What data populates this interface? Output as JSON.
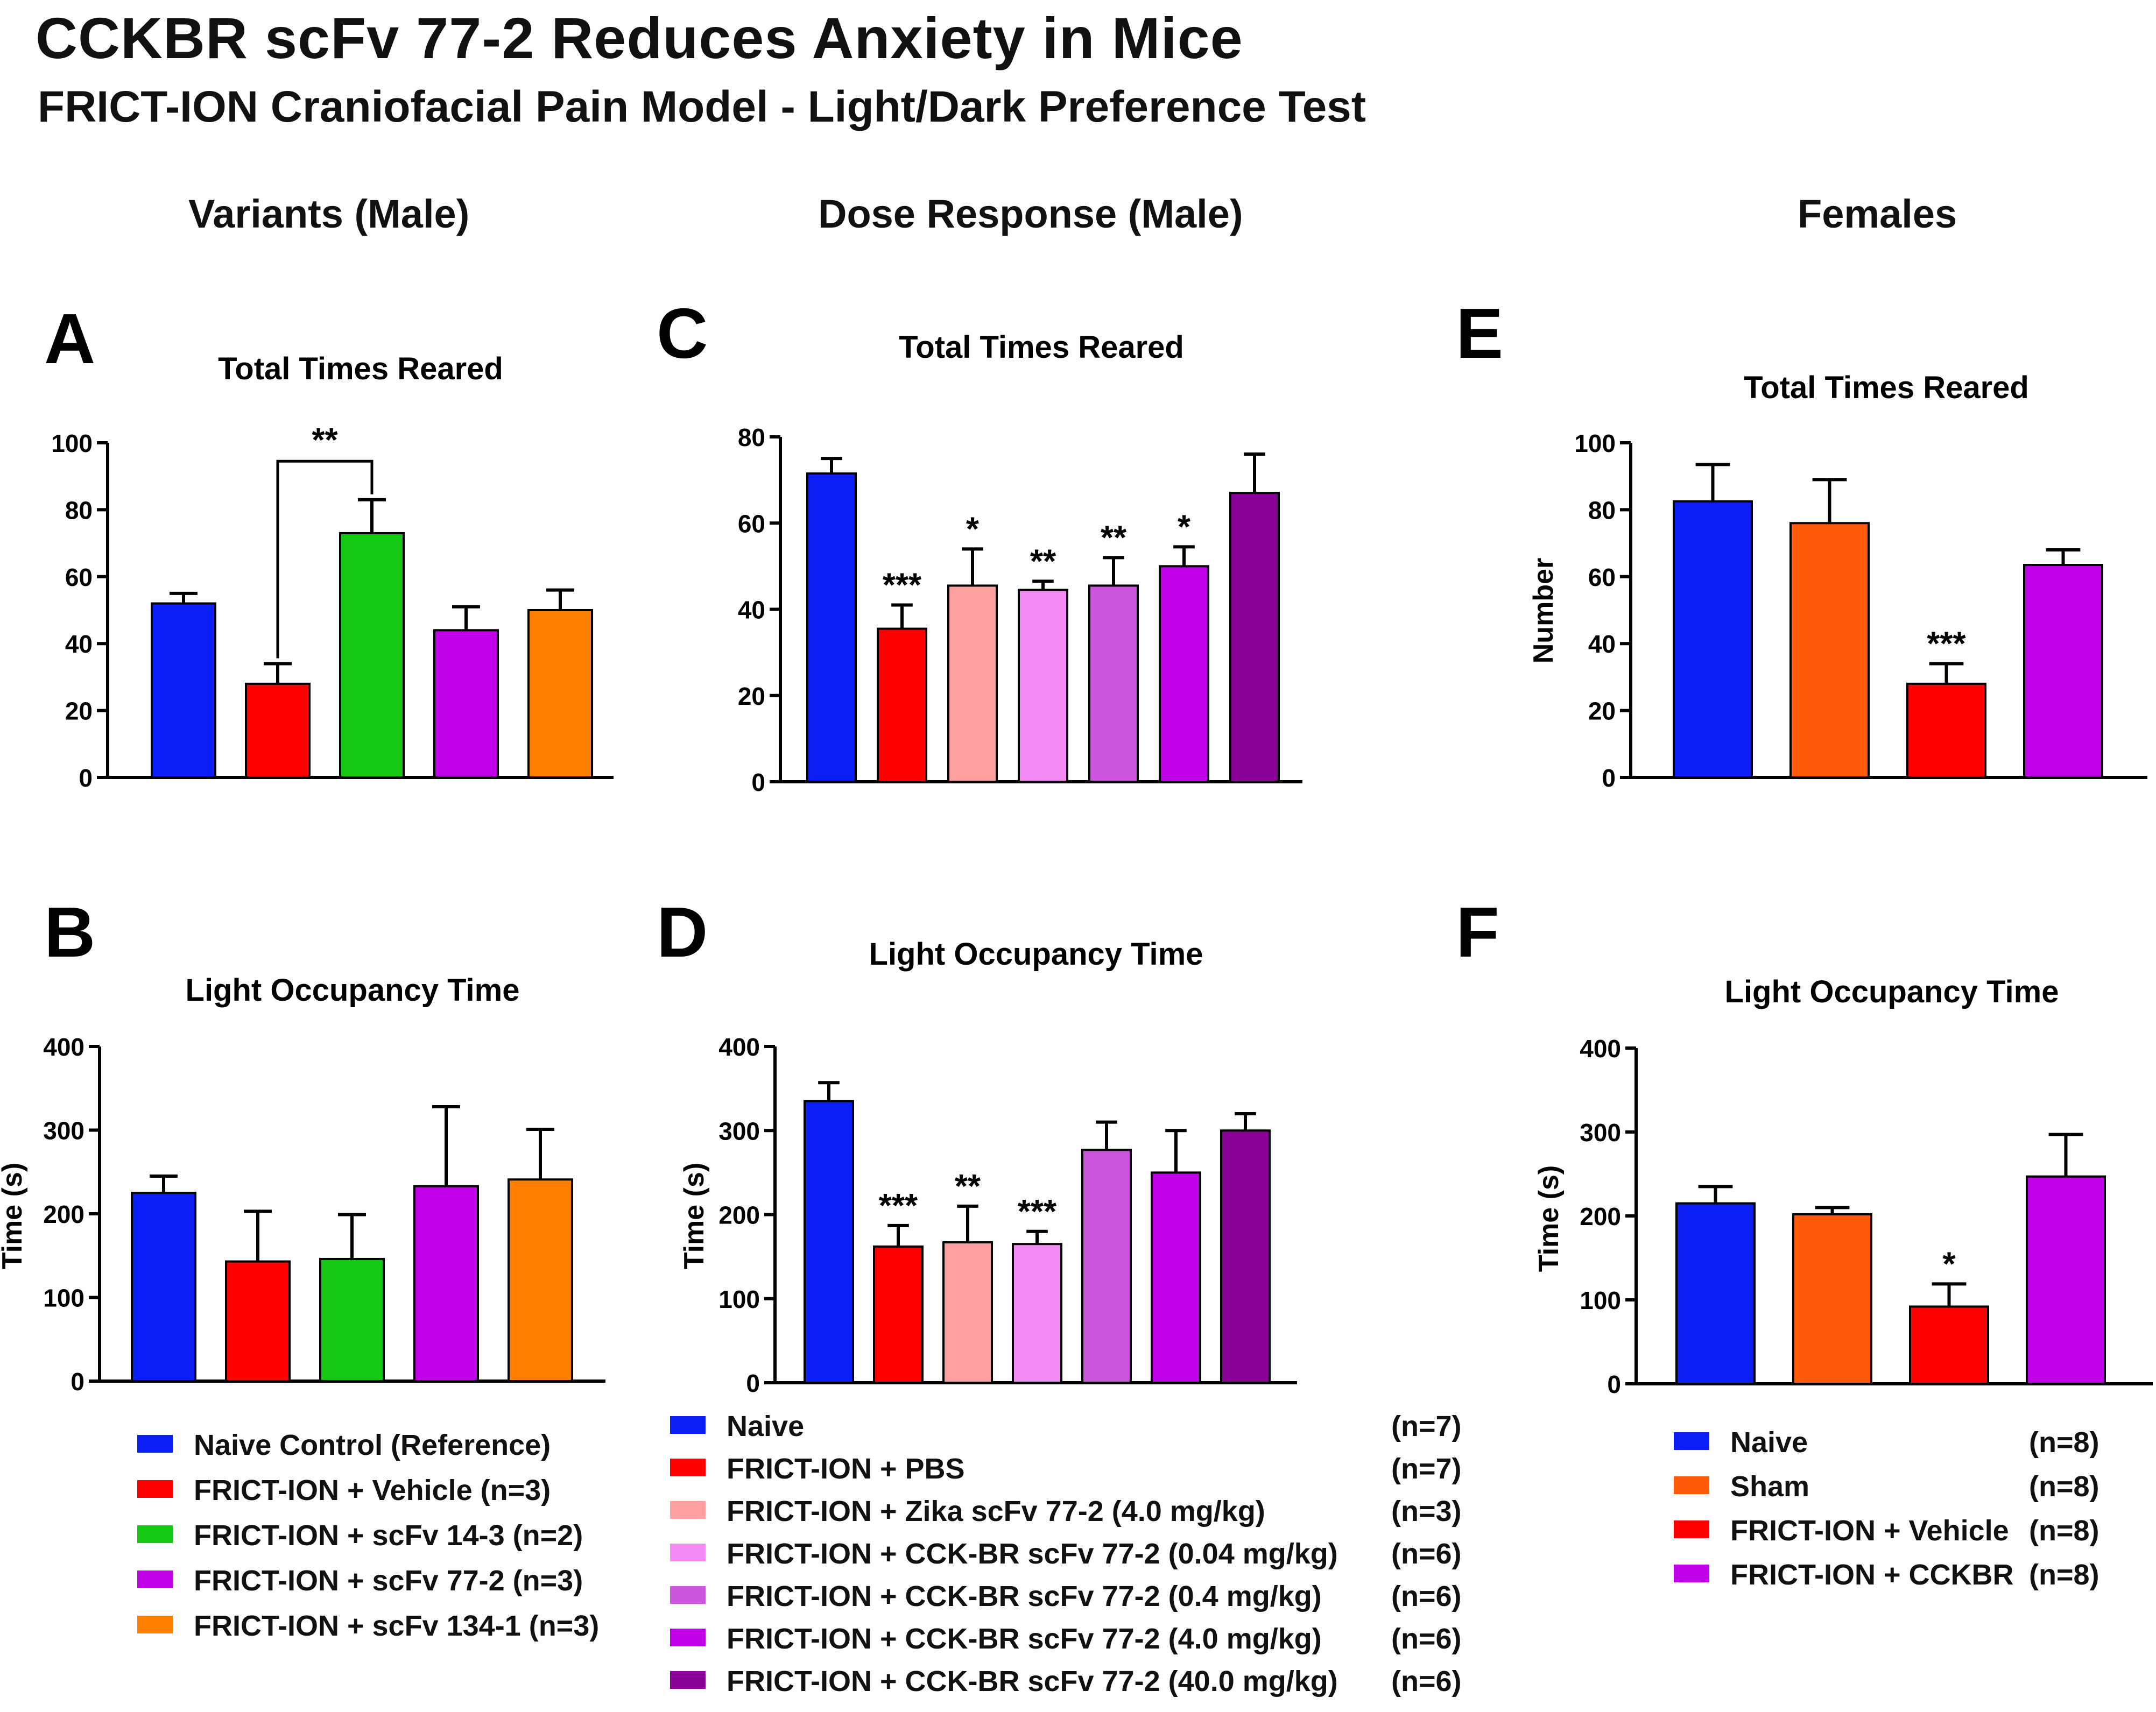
{
  "title": "CCKBR scFv 77-2 Reduces Anxiety in Mice",
  "subtitle": "FRICT-ION Craniofacial Pain Model - Light/Dark Preference Test",
  "column_headers": [
    "Variants (Male)",
    "Dose Response (Male)",
    "Females"
  ],
  "colors": {
    "blue": "#0a1ef5",
    "red": "#ff0000",
    "green": "#14c814",
    "purple": "#c000e6",
    "orange": "#ff8000",
    "sham_orange": "#ff5a0a",
    "salmon": "#ffa0a0",
    "pink": "#f58cf5",
    "orchid": "#cc55dd",
    "darkpurple": "#880096"
  },
  "chart_data": [
    {
      "id": "A",
      "panel_letter": "A",
      "type": "bar",
      "title": "Total Times Reared",
      "xlabel": "",
      "ylabel": "",
      "ylim": [
        0,
        100
      ],
      "yticks": [
        "0",
        "20",
        "40",
        "60",
        "80",
        "100"
      ],
      "values": [
        52,
        28,
        73,
        44,
        50
      ],
      "errors": [
        3,
        6,
        10,
        7,
        6
      ],
      "colors": [
        "#0a1ef5",
        "#ff0000",
        "#14c814",
        "#c000e6",
        "#ff8000"
      ],
      "annotations": [
        "",
        "",
        "",
        "",
        ""
      ],
      "bracket": {
        "from": 1,
        "to": 2,
        "label": "**"
      }
    },
    {
      "id": "B",
      "panel_letter": "B",
      "type": "bar",
      "title": "Light Occupancy Time",
      "xlabel": "",
      "ylabel": "Time (s)",
      "ylim": [
        0,
        400
      ],
      "yticks": [
        "0",
        "100",
        "200",
        "300",
        "400"
      ],
      "values": [
        225,
        143,
        146,
        233,
        241
      ],
      "errors": [
        20,
        60,
        53,
        95,
        60
      ],
      "colors": [
        "#0a1ef5",
        "#ff0000",
        "#14c814",
        "#c000e6",
        "#ff8000"
      ],
      "annotations": [
        "",
        "",
        "",
        "",
        ""
      ]
    },
    {
      "id": "C",
      "panel_letter": "C",
      "type": "bar",
      "title": "Total Times Reared",
      "xlabel": "",
      "ylabel": "",
      "ylim": [
        0,
        80
      ],
      "yticks": [
        "0",
        "20",
        "40",
        "60",
        "80"
      ],
      "values": [
        71.5,
        35.5,
        45.5,
        44.5,
        45.5,
        50,
        67
      ],
      "errors": [
        3.5,
        5.5,
        8.5,
        2,
        6.5,
        4.5,
        9
      ],
      "colors": [
        "#0a1ef5",
        "#ff0000",
        "#ffa0a0",
        "#f58cf5",
        "#cc55dd",
        "#c000e6",
        "#880096"
      ],
      "annotations": [
        "",
        "***",
        "*",
        "**",
        "**",
        "*",
        ""
      ]
    },
    {
      "id": "D",
      "panel_letter": "D",
      "type": "bar",
      "title": "Light Occupancy Time",
      "xlabel": "",
      "ylabel": "Time (s)",
      "ylim": [
        0,
        400
      ],
      "yticks": [
        "0",
        "100",
        "200",
        "300",
        "400"
      ],
      "values": [
        335,
        162,
        167,
        165,
        277,
        250,
        300
      ],
      "errors": [
        22,
        25,
        43,
        15,
        33,
        50,
        20
      ],
      "colors": [
        "#0a1ef5",
        "#ff0000",
        "#ffa0a0",
        "#f58cf5",
        "#cc55dd",
        "#c000e6",
        "#880096"
      ],
      "annotations": [
        "",
        "***",
        "**",
        "***",
        "",
        "",
        ""
      ]
    },
    {
      "id": "E",
      "panel_letter": "E",
      "type": "bar",
      "title": "Total Times Reared",
      "xlabel": "",
      "ylabel": "Number",
      "ylim": [
        0,
        100
      ],
      "yticks": [
        "0",
        "20",
        "40",
        "60",
        "80",
        "100"
      ],
      "values": [
        82.5,
        76,
        28,
        63.5
      ],
      "errors": [
        11,
        13,
        6,
        4.5
      ],
      "colors": [
        "#0a1ef5",
        "#ff5a0a",
        "#ff0000",
        "#c000e6"
      ],
      "annotations": [
        "",
        "",
        "***",
        ""
      ]
    },
    {
      "id": "F",
      "panel_letter": "F",
      "type": "bar",
      "title": "Light Occupancy Time",
      "xlabel": "",
      "ylabel": "Time (s)",
      "ylim": [
        0,
        400
      ],
      "yticks": [
        "0",
        "100",
        "200",
        "300",
        "400"
      ],
      "values": [
        215,
        202,
        92,
        247
      ],
      "errors": [
        20,
        8,
        27,
        50
      ],
      "colors": [
        "#0a1ef5",
        "#ff5a0a",
        "#ff0000",
        "#c000e6"
      ],
      "annotations": [
        "",
        "",
        "*",
        ""
      ]
    }
  ],
  "legends": {
    "variants": [
      {
        "label": "Naive Control (Reference)",
        "n": "",
        "color": "#0a1ef5"
      },
      {
        "label": "FRICT-ION + Vehicle (n=3)",
        "n": "",
        "color": "#ff0000"
      },
      {
        "label": "FRICT-ION + scFv 14-3 (n=2)",
        "n": "",
        "color": "#14c814"
      },
      {
        "label": "FRICT-ION + scFv 77-2 (n=3)",
        "n": "",
        "color": "#c000e6"
      },
      {
        "label": "FRICT-ION + scFv 134-1 (n=3)",
        "n": "",
        "color": "#ff8000"
      }
    ],
    "dose": [
      {
        "label": "Naive",
        "n": "(n=7)",
        "color": "#0a1ef5"
      },
      {
        "label": "FRICT-ION + PBS",
        "n": "(n=7)",
        "color": "#ff0000"
      },
      {
        "label": "FRICT-ION + Zika scFv 77-2 (4.0 mg/kg)",
        "n": "(n=3)",
        "color": "#ffa0a0"
      },
      {
        "label": "FRICT-ION + CCK-BR scFv 77-2 (0.04 mg/kg)",
        "n": "(n=6)",
        "color": "#f58cf5"
      },
      {
        "label": "FRICT-ION + CCK-BR scFv 77-2 (0.4 mg/kg)",
        "n": "(n=6)",
        "color": "#cc55dd"
      },
      {
        "label": "FRICT-ION + CCK-BR scFv 77-2 (4.0 mg/kg)",
        "n": "(n=6)",
        "color": "#c000e6"
      },
      {
        "label": "FRICT-ION + CCK-BR scFv 77-2 (40.0 mg/kg)",
        "n": "(n=6)",
        "color": "#880096"
      }
    ],
    "females": [
      {
        "label": "Naive",
        "n": "(n=8)",
        "color": "#0a1ef5"
      },
      {
        "label": "Sham",
        "n": "(n=8)",
        "color": "#ff5a0a"
      },
      {
        "label": "FRICT-ION + Vehicle",
        "n": "(n=8)",
        "color": "#ff0000"
      },
      {
        "label": "FRICT-ION + CCKBR",
        "n": "(n=8)",
        "color": "#c000e6"
      }
    ]
  }
}
